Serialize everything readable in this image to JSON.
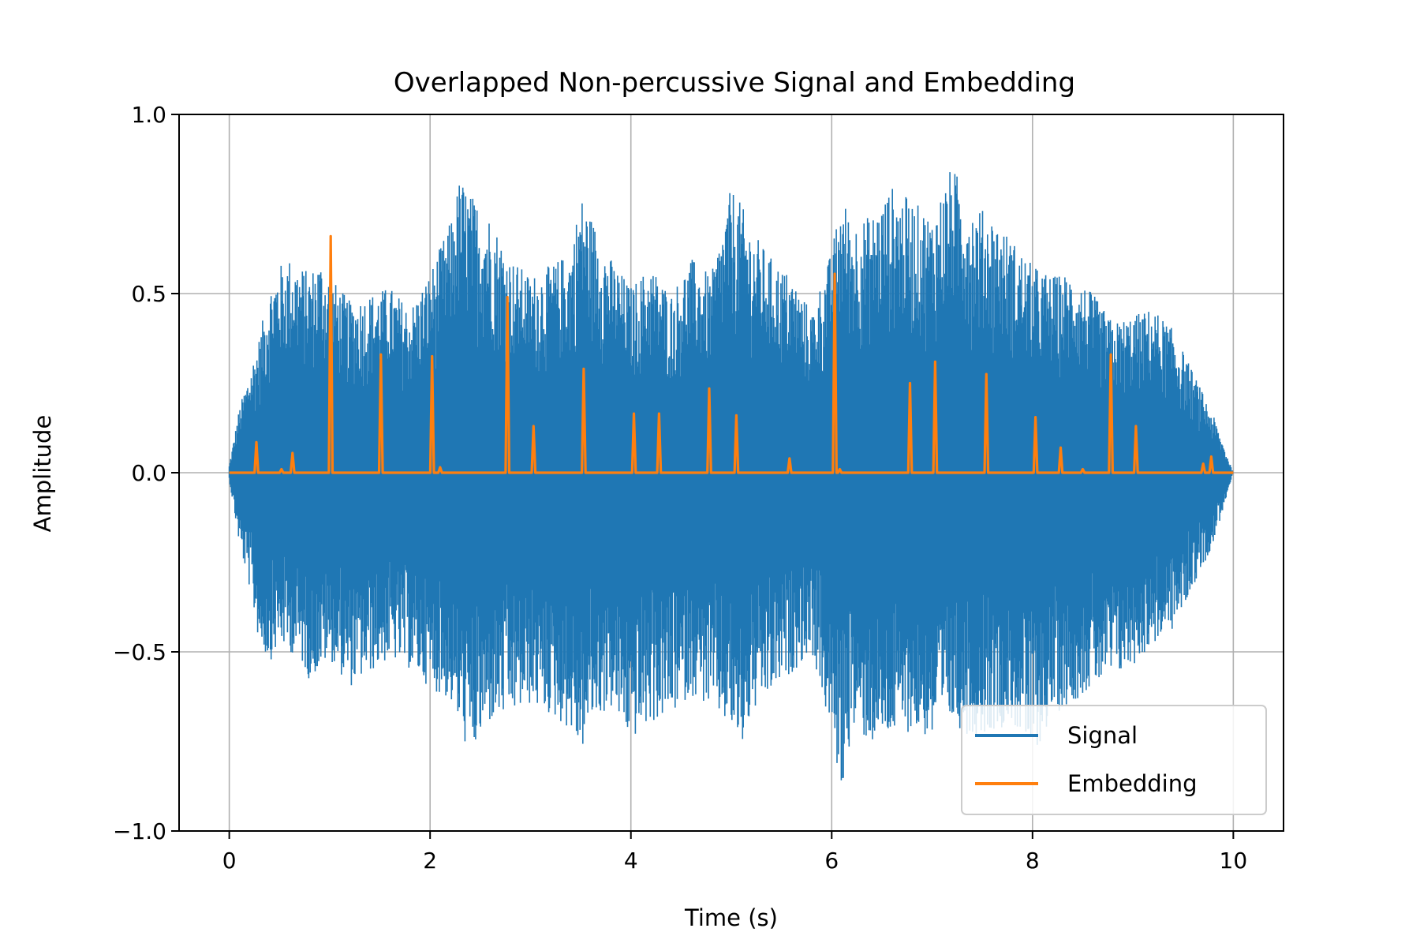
{
  "chart_data": {
    "type": "line",
    "title": "Overlapped Non-percussive Signal and Embedding",
    "xlabel": "Time (s)",
    "ylabel": "Amplitude",
    "xlim": [
      -0.5,
      10.5
    ],
    "ylim": [
      -1.0,
      1.0
    ],
    "xticks": [
      0,
      2,
      4,
      6,
      8,
      10
    ],
    "xtick_labels": [
      "0",
      "2",
      "4",
      "6",
      "8",
      "10"
    ],
    "yticks": [
      -1.0,
      -0.5,
      0.0,
      0.5,
      1.0
    ],
    "ytick_labels": [
      "−1.0",
      "−0.5",
      "0.0",
      "0.5",
      "1.0"
    ],
    "grid": true,
    "legend_position": "lower-right",
    "series": [
      {
        "name": "Signal",
        "color": "#1f77b4",
        "kind": "dense-waveform",
        "envelope_x": [
          0,
          0.1,
          0.2,
          0.3,
          0.4,
          0.5,
          0.6,
          0.7,
          0.8,
          0.9,
          1.0,
          1.2,
          1.4,
          1.6,
          1.8,
          2.0,
          2.2,
          2.3,
          2.4,
          2.6,
          2.8,
          3.0,
          3.2,
          3.4,
          3.5,
          3.6,
          3.8,
          4.0,
          4.2,
          4.4,
          4.6,
          4.8,
          5.0,
          5.1,
          5.2,
          5.4,
          5.6,
          5.8,
          6.0,
          6.1,
          6.2,
          6.4,
          6.6,
          6.8,
          7.0,
          7.2,
          7.4,
          7.6,
          7.8,
          8.0,
          8.2,
          8.4,
          8.6,
          8.8,
          9.0,
          9.2,
          9.4,
          9.6,
          9.8,
          9.9,
          10.0
        ],
        "envelope_max": [
          0.02,
          0.18,
          0.28,
          0.38,
          0.52,
          0.58,
          0.6,
          0.58,
          0.56,
          0.6,
          0.55,
          0.48,
          0.5,
          0.52,
          0.46,
          0.56,
          0.7,
          0.83,
          0.78,
          0.72,
          0.6,
          0.55,
          0.58,
          0.62,
          0.78,
          0.72,
          0.6,
          0.52,
          0.58,
          0.5,
          0.6,
          0.55,
          0.8,
          0.75,
          0.68,
          0.6,
          0.55,
          0.45,
          0.62,
          0.78,
          0.7,
          0.72,
          0.8,
          0.76,
          0.72,
          0.86,
          0.75,
          0.72,
          0.65,
          0.58,
          0.55,
          0.56,
          0.5,
          0.42,
          0.44,
          0.46,
          0.4,
          0.28,
          0.16,
          0.08,
          0.0
        ],
        "envelope_min": [
          -0.02,
          -0.2,
          -0.32,
          -0.48,
          -0.53,
          -0.48,
          -0.5,
          -0.52,
          -0.58,
          -0.55,
          -0.52,
          -0.6,
          -0.56,
          -0.52,
          -0.55,
          -0.6,
          -0.64,
          -0.72,
          -0.8,
          -0.7,
          -0.68,
          -0.65,
          -0.68,
          -0.72,
          -0.79,
          -0.7,
          -0.66,
          -0.75,
          -0.7,
          -0.68,
          -0.62,
          -0.66,
          -0.72,
          -0.78,
          -0.68,
          -0.62,
          -0.56,
          -0.5,
          -0.74,
          -0.9,
          -0.72,
          -0.76,
          -0.74,
          -0.72,
          -0.75,
          -0.7,
          -0.74,
          -0.72,
          -0.7,
          -0.8,
          -0.68,
          -0.64,
          -0.6,
          -0.58,
          -0.54,
          -0.48,
          -0.44,
          -0.32,
          -0.2,
          -0.1,
          0.0
        ]
      },
      {
        "name": "Embedding",
        "color": "#ff7f0e",
        "kind": "impulse-train",
        "baseline": 0.0,
        "peaks_x": [
          0.27,
          0.52,
          0.63,
          1.01,
          1.51,
          2.02,
          2.1,
          2.77,
          3.03,
          3.53,
          4.03,
          4.28,
          4.78,
          5.05,
          5.58,
          6.03,
          6.08,
          6.78,
          7.03,
          7.54,
          8.03,
          8.28,
          8.5,
          8.78,
          9.03,
          9.7,
          9.78
        ],
        "peaks_y": [
          0.085,
          0.01,
          0.055,
          0.66,
          0.33,
          0.325,
          0.015,
          0.49,
          0.13,
          0.29,
          0.165,
          0.165,
          0.235,
          0.16,
          0.04,
          0.555,
          0.01,
          0.25,
          0.31,
          0.275,
          0.155,
          0.07,
          0.01,
          0.33,
          0.13,
          0.025,
          0.045
        ]
      }
    ]
  }
}
